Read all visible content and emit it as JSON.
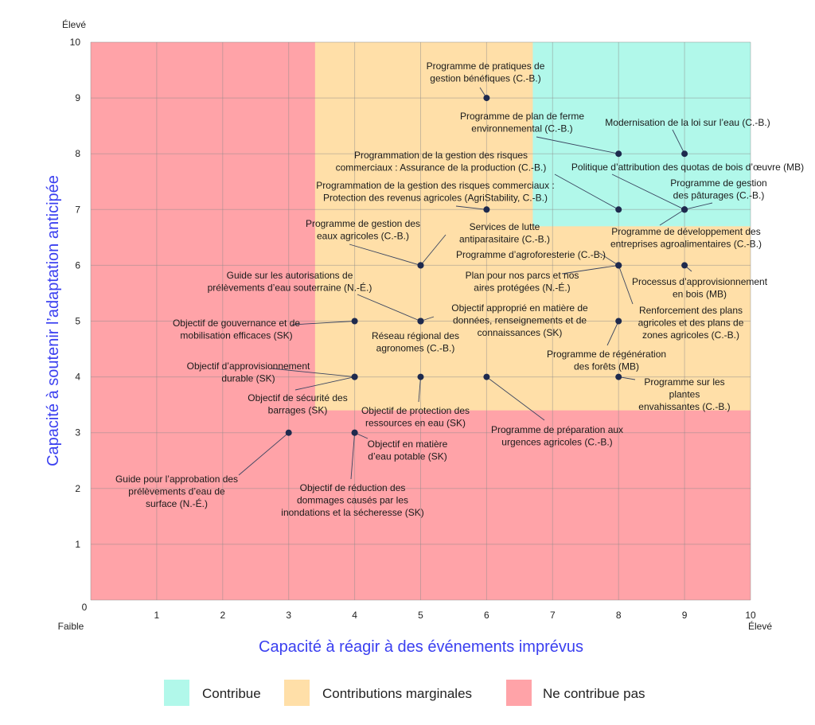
{
  "chart_data": {
    "type": "scatter",
    "xlabel": "Capacité à réagir à des événements imprévus",
    "ylabel": "Capacité à soutenir l’adaptation anticipée",
    "xlim": [
      0,
      10
    ],
    "ylim": [
      0,
      10
    ],
    "x_ticks": [
      "0",
      "1",
      "2",
      "3",
      "4",
      "5",
      "6",
      "7",
      "8",
      "9",
      "10"
    ],
    "y_ticks": [
      "1",
      "2",
      "3",
      "4",
      "5",
      "6",
      "7",
      "8",
      "9",
      "10"
    ],
    "x_low_label": "Faible",
    "x_high_label": "Élevé",
    "y_high_label": "Élevé",
    "grid": true,
    "legend_position": "bottom",
    "regions": [
      {
        "name": "Contribue",
        "color": "#b1f8ea",
        "x_range": [
          6.7,
          10
        ],
        "y_range": [
          6.7,
          10
        ]
      },
      {
        "name": "Contributions marginales",
        "color": "#ffdfa8",
        "x_range": [
          3.4,
          10
        ],
        "y_range": [
          3.4,
          10
        ]
      },
      {
        "name": "Ne contribue pas",
        "color": "#ffa3a8",
        "x_range": [
          0,
          10
        ],
        "y_range": [
          0,
          10
        ]
      }
    ],
    "point_color": "#1e2a4e",
    "points": [
      {
        "x": 6,
        "y": 9,
        "label": [
          "Programme de pratiques de",
          "gestion bénéfiques (C.-B.)"
        ]
      },
      {
        "x": 8,
        "y": 8,
        "label": [
          "Programme de plan de ferme",
          "environnemental (C.-B.)"
        ]
      },
      {
        "x": 9,
        "y": 8,
        "label": [
          "Modernisation de la loi sur l’eau (C.-B.)"
        ]
      },
      {
        "x": 8,
        "y": 7,
        "label": [
          "Programmation de la gestion des risques",
          "commerciaux : Assurance de la production (C.-B.)"
        ]
      },
      {
        "x": 9,
        "y": 7,
        "label": [
          "Politique d’attribution des quotas de bois d’œuvre (MB)"
        ]
      },
      {
        "x": 9,
        "y": 7,
        "label": [
          "Programme de gestion",
          "des pâturages (C.-B.)"
        ]
      },
      {
        "x": 9,
        "y": 7,
        "label": [
          "Programme de développement des",
          "entreprises agroalimentaires (C.-B.)"
        ]
      },
      {
        "x": 6,
        "y": 7,
        "label": [
          "Programmation de la gestion des risques commerciaux :",
          "Protection des revenus agricoles (AgriStability, C.-B.)"
        ]
      },
      {
        "x": 5,
        "y": 6,
        "label": [
          "Programme de gestion des",
          "eaux agricoles (C.-B.)"
        ]
      },
      {
        "x": 5,
        "y": 6,
        "label": [
          "Services de lutte",
          "antiparasitaire (C.-B.)"
        ]
      },
      {
        "x": 8,
        "y": 6,
        "label": [
          "Programme d’agroforesterie (C.-B.)"
        ]
      },
      {
        "x": 8,
        "y": 6,
        "label": [
          "Plan pour nos parcs et nos",
          "aires protégées (N.-É.)"
        ]
      },
      {
        "x": 8,
        "y": 6,
        "label": [
          "Renforcement des plans",
          "agricoles et des plans de",
          "zones agricoles (C.-B.)"
        ]
      },
      {
        "x": 9,
        "y": 6,
        "label": [
          "Processus d’approvisionnement",
          "en bois (MB)"
        ]
      },
      {
        "x": 4,
        "y": 5,
        "label": [
          "Objectif de gouvernance et de",
          "mobilisation efficaces (SK)"
        ]
      },
      {
        "x": 5,
        "y": 5,
        "label": [
          "Guide sur les autorisations de",
          "prélèvements d’eau souterraine (N.-É.)"
        ]
      },
      {
        "x": 5,
        "y": 5,
        "label": [
          "Objectif approprié en matière de",
          "données, renseignements et de",
          "connaissances (SK)"
        ]
      },
      {
        "x": 5,
        "y": 5,
        "label": [
          "Réseau régional des",
          "agronomes (C.-B.)"
        ]
      },
      {
        "x": 8,
        "y": 5,
        "label": [
          "Programme de régénération",
          "des forêts (MB)"
        ]
      },
      {
        "x": 4,
        "y": 4,
        "label": [
          "Objectif d’approvisionnement",
          "durable (SK)"
        ]
      },
      {
        "x": 4,
        "y": 4,
        "label": [
          "Objectif de sécurité des",
          "barrages (SK)"
        ]
      },
      {
        "x": 5,
        "y": 4,
        "label": [
          "Objectif de protection des",
          "ressources en eau (SK)"
        ]
      },
      {
        "x": 6,
        "y": 4,
        "label": [
          "Programme de préparation aux",
          "urgences agricoles (C.-B.)"
        ]
      },
      {
        "x": 8,
        "y": 4,
        "label": [
          "Programme sur les",
          "plantes",
          "envahissantes (C.-B.)"
        ]
      },
      {
        "x": 3,
        "y": 3,
        "label": [
          "Guide pour l’approbation des",
          "prélèvements d’eau de",
          "surface (N.-É.)"
        ]
      },
      {
        "x": 4,
        "y": 3,
        "label": [
          "Objectif en matière",
          "d’eau potable (SK)"
        ]
      },
      {
        "x": 4,
        "y": 3,
        "label": [
          "Objectif de réduction des",
          "dommages causés par les",
          "inondations et la sécheresse (SK)"
        ]
      }
    ]
  }
}
